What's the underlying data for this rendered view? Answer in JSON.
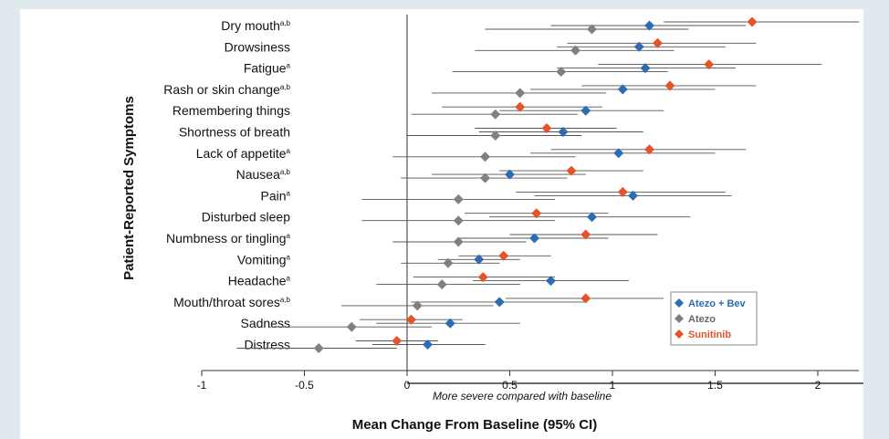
{
  "chart_data": {
    "type": "scatter",
    "ylabel": "Patient-Reported Symptoms",
    "xlabel": "Mean Change From Baseline (95% CI)",
    "annotation": "More severe compared with baseline",
    "xlim": [
      -1,
      2.2
    ],
    "xticks": [
      "-1",
      "-0.5",
      "0",
      "0.5",
      "1",
      "1.5",
      "2"
    ],
    "legend_position": "bottom-right",
    "categories": [
      {
        "name": "Dry mouth",
        "sup": "a,b"
      },
      {
        "name": "Drowsiness",
        "sup": ""
      },
      {
        "name": "Fatigue",
        "sup": "a"
      },
      {
        "name": "Rash or skin change",
        "sup": "a,b"
      },
      {
        "name": "Remembering things",
        "sup": ""
      },
      {
        "name": "Shortness of breath",
        "sup": ""
      },
      {
        "name": "Lack of appetite",
        "sup": "a"
      },
      {
        "name": "Nausea",
        "sup": "a,b"
      },
      {
        "name": "Pain",
        "sup": "a"
      },
      {
        "name": "Disturbed sleep",
        "sup": ""
      },
      {
        "name": "Numbness or tingling",
        "sup": "a"
      },
      {
        "name": "Vomiting",
        "sup": "a"
      },
      {
        "name": "Headache",
        "sup": "a"
      },
      {
        "name": "Mouth/throat sores",
        "sup": "a,b"
      },
      {
        "name": "Sadness",
        "sup": ""
      },
      {
        "name": "Distress",
        "sup": ""
      }
    ],
    "series": [
      {
        "name": "Sunitinib",
        "color": "#e5532b",
        "values": [
          1.68,
          1.22,
          1.47,
          1.28,
          0.55,
          0.68,
          1.18,
          0.8,
          1.05,
          0.63,
          0.87,
          0.47,
          0.37,
          0.87,
          0.02,
          -0.05
        ],
        "lower": [
          1.25,
          0.78,
          0.93,
          0.85,
          0.17,
          0.33,
          0.7,
          0.45,
          0.53,
          0.28,
          0.5,
          0.25,
          0.03,
          0.48,
          -0.23,
          -0.25
        ],
        "upper": [
          2.2,
          1.7,
          2.02,
          1.7,
          0.95,
          1.02,
          1.65,
          1.15,
          1.55,
          0.98,
          1.22,
          0.7,
          0.72,
          1.25,
          0.27,
          0.15
        ]
      },
      {
        "name": "Atezo + Bev",
        "color": "#2b6cb3",
        "values": [
          1.18,
          1.13,
          1.16,
          1.05,
          0.87,
          0.76,
          1.03,
          0.5,
          1.1,
          0.9,
          0.62,
          0.35,
          0.7,
          0.45,
          0.21,
          0.1
        ],
        "lower": [
          0.7,
          0.73,
          0.73,
          0.6,
          0.45,
          0.35,
          0.6,
          0.12,
          0.62,
          0.4,
          0.25,
          0.15,
          0.32,
          0.02,
          -0.15,
          -0.17
        ],
        "upper": [
          1.65,
          1.55,
          1.6,
          1.5,
          1.25,
          1.15,
          1.5,
          0.87,
          1.58,
          1.38,
          0.98,
          0.55,
          1.08,
          0.87,
          0.55,
          0.38
        ]
      },
      {
        "name": "Atezo",
        "color": "#808080",
        "values": [
          0.9,
          0.82,
          0.75,
          0.55,
          0.43,
          0.43,
          0.38,
          0.38,
          0.25,
          0.25,
          0.25,
          0.2,
          0.17,
          0.05,
          -0.27,
          -0.43
        ],
        "lower": [
          0.38,
          0.33,
          0.22,
          0.12,
          0.02,
          0.0,
          -0.07,
          -0.03,
          -0.22,
          -0.22,
          -0.07,
          -0.03,
          -0.15,
          -0.32,
          -0.67,
          -0.83
        ],
        "upper": [
          1.37,
          1.3,
          1.27,
          0.97,
          0.83,
          0.85,
          0.82,
          0.78,
          0.72,
          0.72,
          0.58,
          0.45,
          0.55,
          0.42,
          0.12,
          -0.05
        ]
      }
    ]
  },
  "legend": [
    {
      "label": "Atezo + Bev",
      "color": "#2b6cb3"
    },
    {
      "label": "Atezo",
      "color": "#808080"
    },
    {
      "label": "Sunitinib",
      "color": "#e5532b"
    }
  ]
}
